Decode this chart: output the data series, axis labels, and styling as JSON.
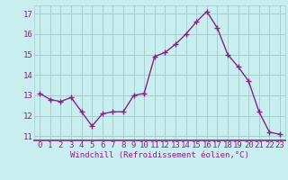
{
  "x": [
    0,
    1,
    2,
    3,
    4,
    5,
    6,
    7,
    8,
    9,
    10,
    11,
    12,
    13,
    14,
    15,
    16,
    17,
    18,
    19,
    20,
    21,
    22,
    23
  ],
  "y": [
    13.1,
    12.8,
    12.7,
    12.9,
    12.2,
    11.5,
    12.1,
    12.2,
    12.2,
    13.0,
    13.1,
    14.9,
    15.1,
    15.5,
    16.0,
    16.6,
    17.1,
    16.3,
    15.0,
    14.4,
    13.7,
    12.2,
    11.2,
    11.1
  ],
  "line_color": "#882288",
  "marker": "+",
  "marker_size": 4,
  "bg_color": "#C8EEF0",
  "grid_color": "#aacccc",
  "tick_color": "#882288",
  "label_color": "#882288",
  "xlabel": "Windchill (Refroidissement éolien,°C)",
  "ylim": [
    10.8,
    17.4
  ],
  "yticks": [
    11,
    12,
    13,
    14,
    15,
    16,
    17
  ],
  "xticks": [
    0,
    1,
    2,
    3,
    4,
    5,
    6,
    7,
    8,
    9,
    10,
    11,
    12,
    13,
    14,
    15,
    16,
    17,
    18,
    19,
    20,
    21,
    22,
    23
  ],
  "font_size": 6.5,
  "xlabel_fontsize": 6.5,
  "linewidth": 1.0
}
